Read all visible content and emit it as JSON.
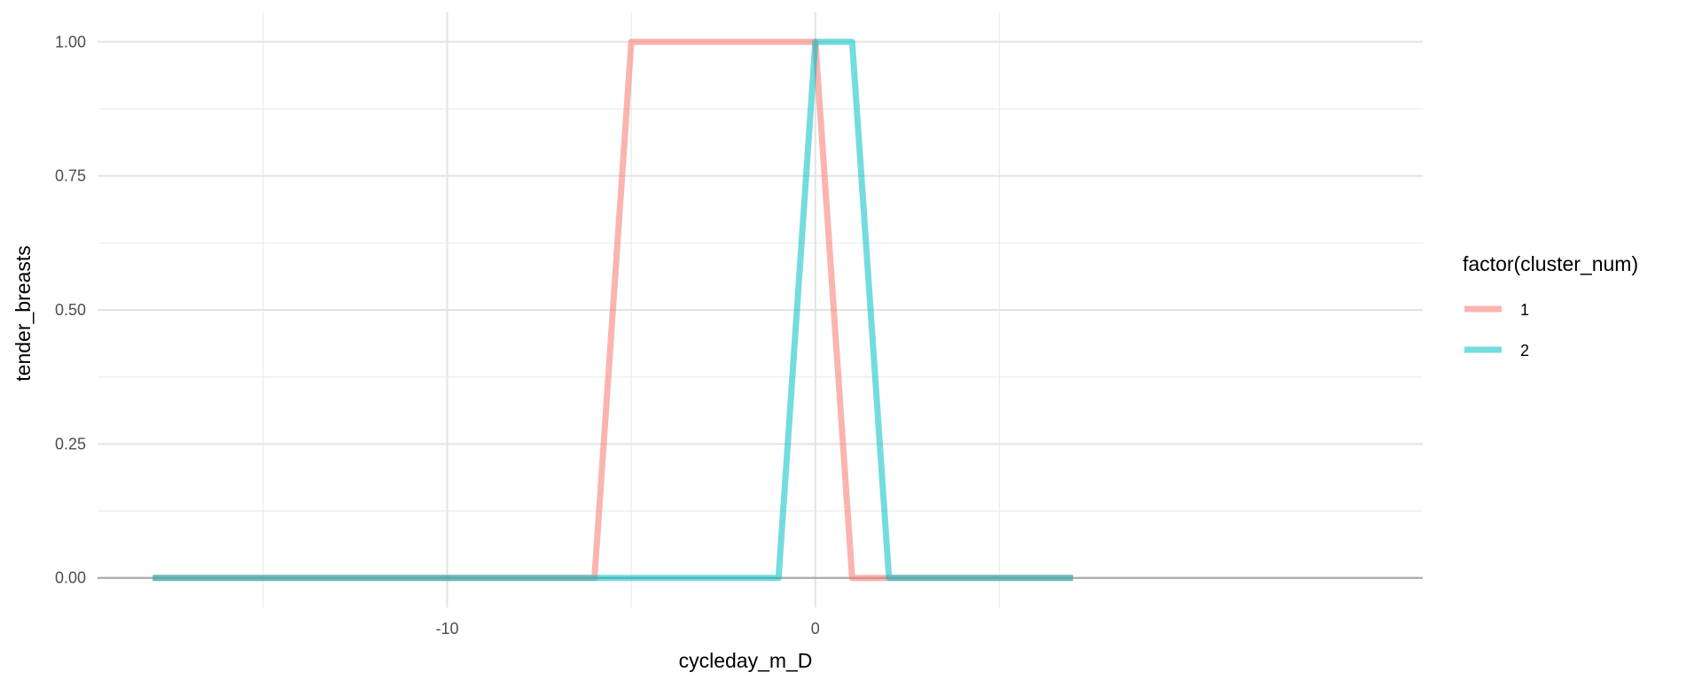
{
  "chart_data": {
    "type": "line",
    "title": "",
    "xlabel": "cycleday_m_D",
    "ylabel": "tender_breasts",
    "xlim": [
      -19.5,
      16.5
    ],
    "ylim": [
      -0.055,
      1.055
    ],
    "x_ticks": [
      -10,
      0
    ],
    "x_tick_labels": [
      "-10",
      "0"
    ],
    "x_minor_ticks": [
      -15,
      -5,
      5
    ],
    "y_ticks": [
      0,
      0.25,
      0.5,
      0.75,
      1
    ],
    "y_tick_labels": [
      "0.00",
      "0.25",
      "0.50",
      "0.75",
      "1.00"
    ],
    "y_minor_ticks": [
      0.125,
      0.375,
      0.625,
      0.875
    ],
    "grid": true,
    "hline_at": 0,
    "legend": {
      "title": "factor(cluster_num)",
      "placement": "right"
    },
    "series": [
      {
        "name": "1",
        "color": "#F8766D",
        "x": [
          -18,
          -17,
          -16,
          -15,
          -14,
          -13,
          -12,
          -11,
          -10,
          -9,
          -8,
          -7,
          -6,
          -5,
          -4,
          -3,
          -2,
          -1,
          0,
          1,
          2,
          3,
          4,
          5,
          6,
          7
        ],
        "y": [
          0,
          0,
          0,
          0,
          0,
          0,
          0,
          0,
          0,
          0,
          0,
          0,
          0,
          1,
          1,
          1,
          1,
          1,
          1,
          0,
          0,
          0,
          0,
          0,
          0,
          0
        ]
      },
      {
        "name": "2",
        "color": "#00BFC4",
        "x": [
          -18,
          -17,
          -16,
          -15,
          -14,
          -13,
          -12,
          -11,
          -10,
          -9,
          -8,
          -7,
          -6,
          -5,
          -4,
          -3,
          -2,
          -1,
          0,
          1,
          2,
          3,
          4,
          5,
          6,
          7
        ],
        "y": [
          0,
          0,
          0,
          0,
          0,
          0,
          0,
          0,
          0,
          0,
          0,
          0,
          0,
          0,
          0,
          0,
          0,
          0,
          1,
          1,
          0,
          0,
          0,
          0,
          0,
          0
        ]
      }
    ]
  }
}
